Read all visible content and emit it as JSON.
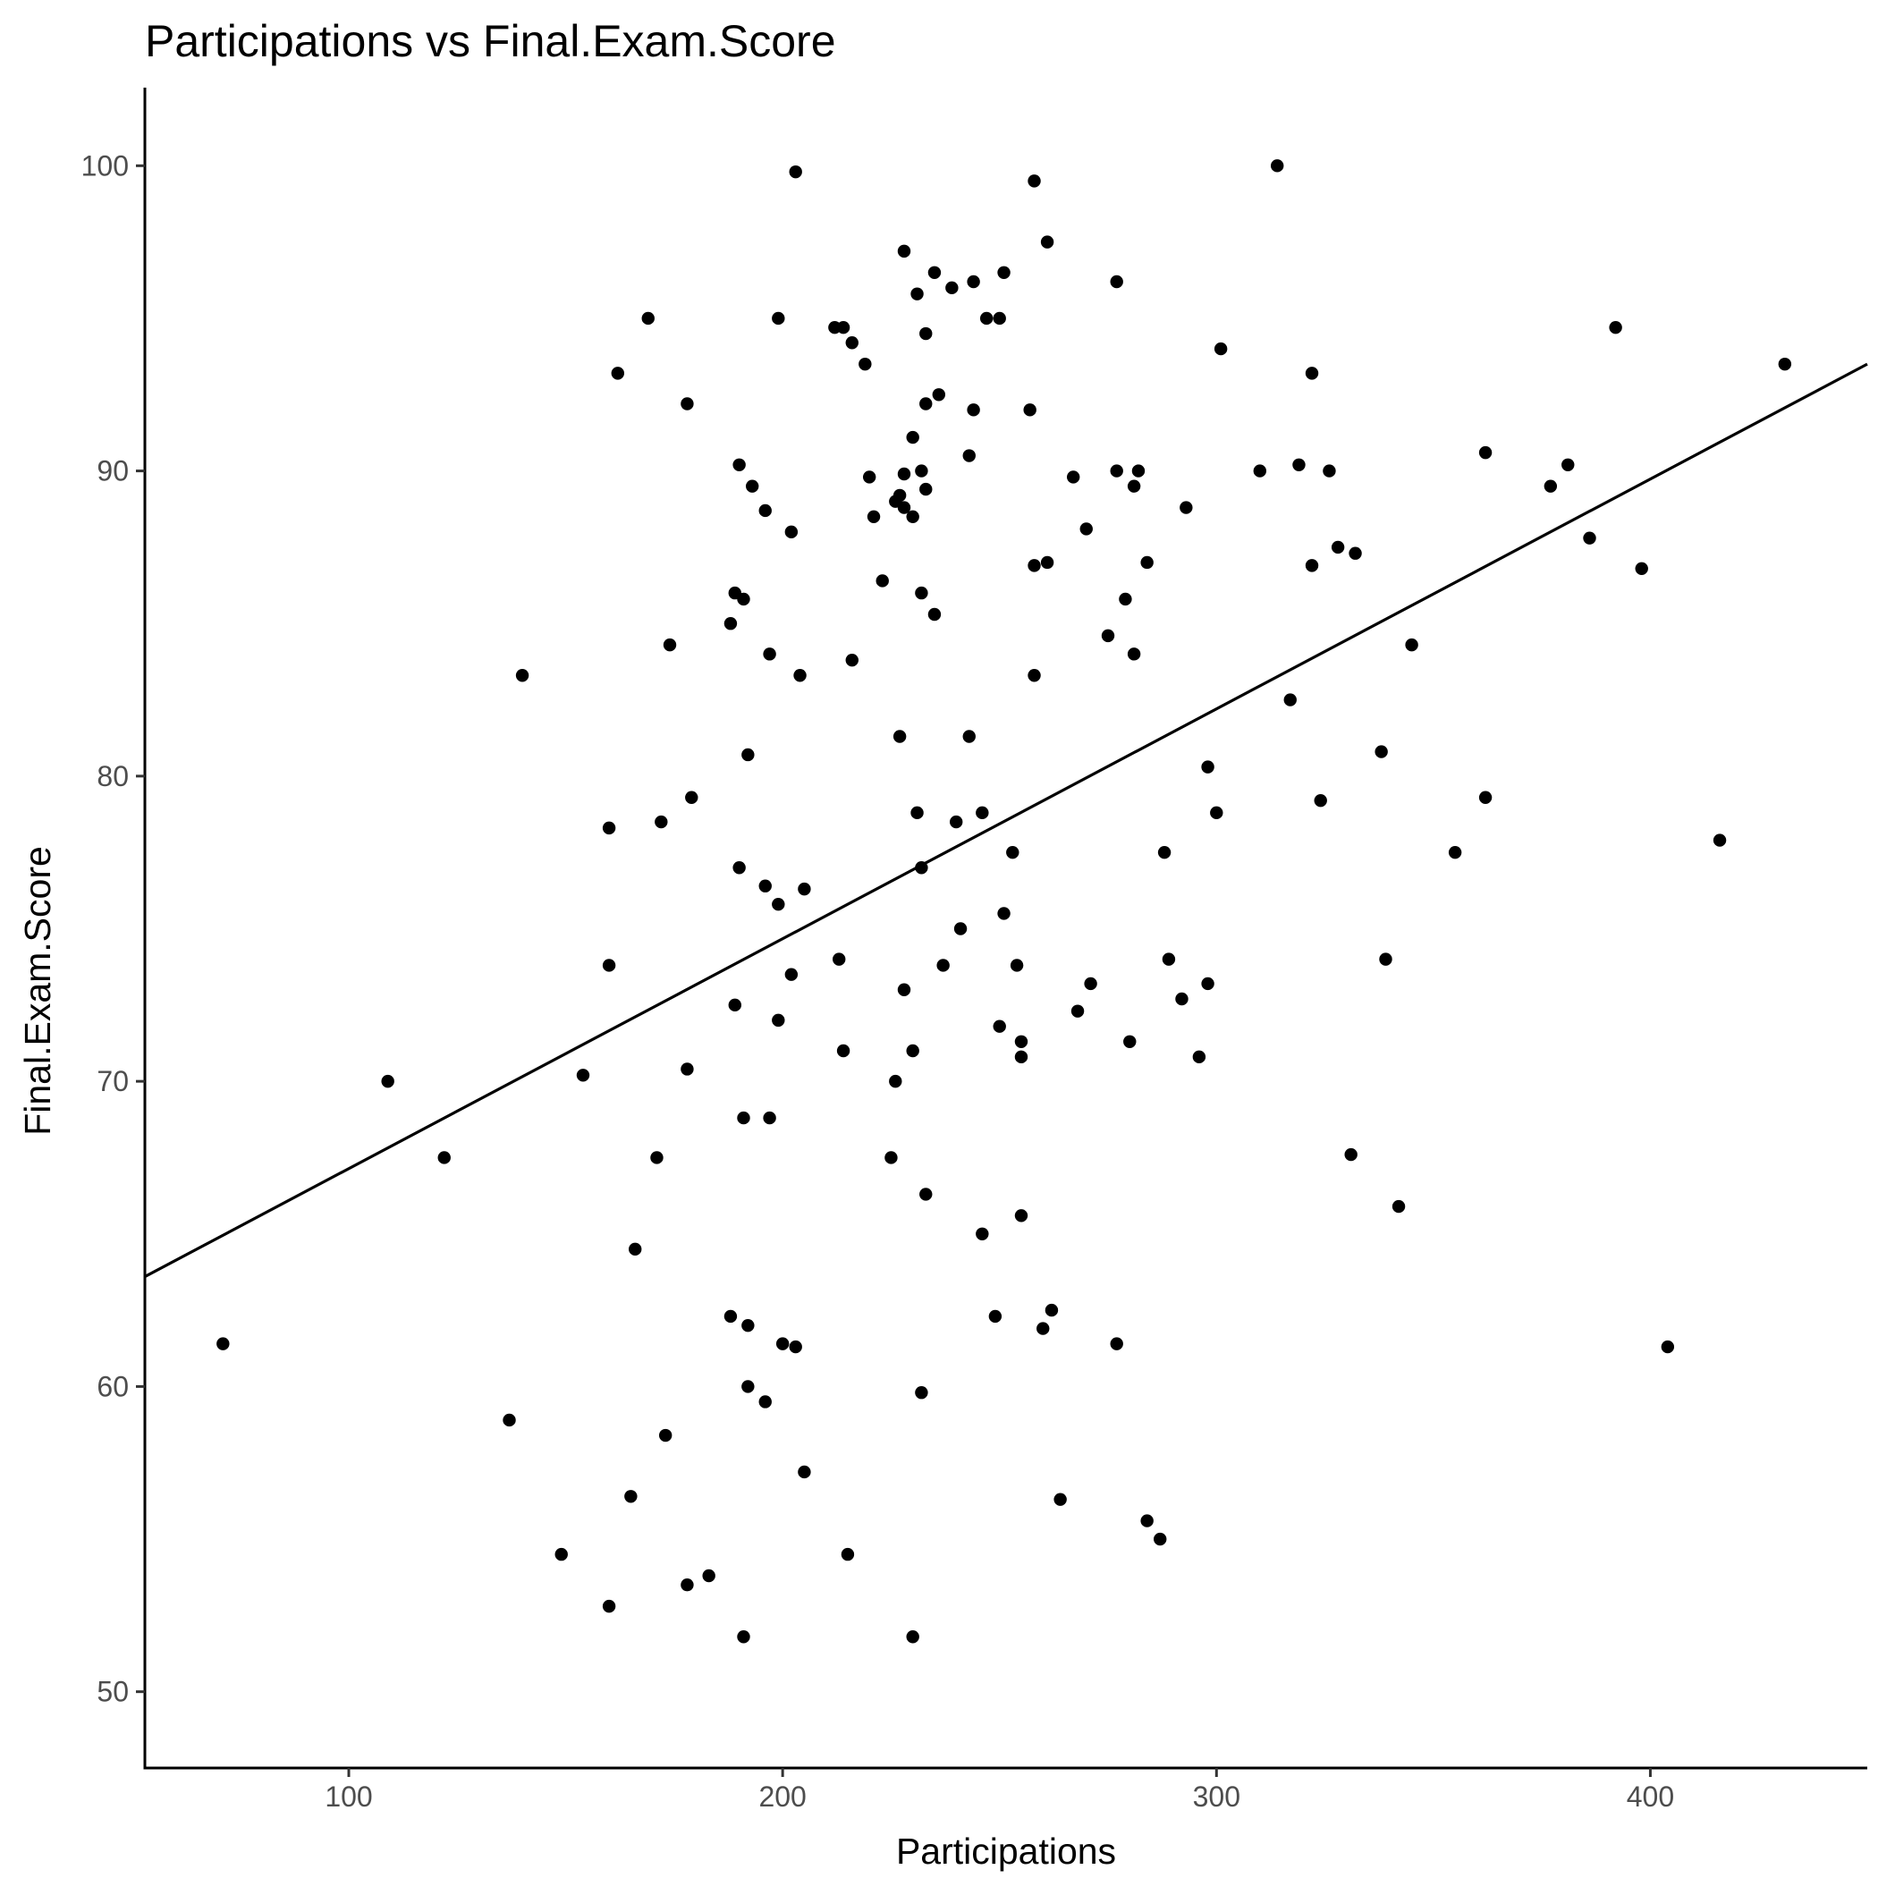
{
  "chart_data": {
    "type": "scatter",
    "title": "Participations vs Final.Exam.Score",
    "xlabel": "Participations",
    "ylabel": "Final.Exam.Score",
    "xlim": [
      53,
      450
    ],
    "ylim": [
      47.5,
      102.5
    ],
    "x_ticks": [
      100,
      200,
      300,
      400
    ],
    "y_ticks": [
      50,
      60,
      70,
      80,
      90,
      100
    ],
    "grid": false,
    "legend": "none",
    "point_color": "#000000",
    "regression_line": {
      "x": [
        53,
        450
      ],
      "y": [
        63.6,
        93.5
      ]
    },
    "points": [
      [
        71,
        61.4
      ],
      [
        109,
        70
      ],
      [
        122,
        67.5
      ],
      [
        137,
        58.9
      ],
      [
        140,
        83.3
      ],
      [
        149,
        54.5
      ],
      [
        154,
        70.2
      ],
      [
        160,
        52.8
      ],
      [
        160,
        73.8
      ],
      [
        160,
        78.3
      ],
      [
        162,
        93.2
      ],
      [
        165,
        56.4
      ],
      [
        166,
        64.5
      ],
      [
        169,
        95
      ],
      [
        171,
        67.5
      ],
      [
        172,
        78.5
      ],
      [
        173,
        58.4
      ],
      [
        174,
        84.3
      ],
      [
        178,
        92.2
      ],
      [
        178,
        70.4
      ],
      [
        178,
        53.5
      ],
      [
        179,
        79.3
      ],
      [
        183,
        53.8
      ],
      [
        188,
        85
      ],
      [
        188,
        62.3
      ],
      [
        189,
        86
      ],
      [
        189,
        72.5
      ],
      [
        190,
        90.2
      ],
      [
        190,
        77
      ],
      [
        191,
        85.8
      ],
      [
        191,
        68.8
      ],
      [
        191,
        51.8
      ],
      [
        192,
        80.7
      ],
      [
        192,
        62
      ],
      [
        192,
        60
      ],
      [
        193,
        89.5
      ],
      [
        196,
        88.7
      ],
      [
        196,
        76.4
      ],
      [
        196,
        59.5
      ],
      [
        197,
        84
      ],
      [
        197,
        68.8
      ],
      [
        199,
        95
      ],
      [
        199,
        75.8
      ],
      [
        199,
        72
      ],
      [
        200,
        61.4
      ],
      [
        202,
        88
      ],
      [
        202,
        73.5
      ],
      [
        203,
        99.8
      ],
      [
        203,
        61.3
      ],
      [
        204,
        83.3
      ],
      [
        205,
        76.3
      ],
      [
        205,
        57.2
      ],
      [
        212,
        94.7
      ],
      [
        213,
        74
      ],
      [
        214,
        94.7
      ],
      [
        214,
        71
      ],
      [
        215,
        54.5
      ],
      [
        216,
        94.2
      ],
      [
        216,
        83.8
      ],
      [
        219,
        93.5
      ],
      [
        220,
        89.8
      ],
      [
        221,
        88.5
      ],
      [
        223,
        86.4
      ],
      [
        225,
        67.5
      ],
      [
        226,
        89
      ],
      [
        226,
        70
      ],
      [
        227,
        89.2
      ],
      [
        227,
        81.3
      ],
      [
        228,
        97.2
      ],
      [
        228,
        89.9
      ],
      [
        228,
        88.8
      ],
      [
        228,
        73
      ],
      [
        230,
        91.1
      ],
      [
        230,
        88.5
      ],
      [
        230,
        71
      ],
      [
        230,
        51.8
      ],
      [
        231,
        95.8
      ],
      [
        231,
        78.8
      ],
      [
        232,
        90
      ],
      [
        232,
        86
      ],
      [
        232,
        77
      ],
      [
        232,
        59.8
      ],
      [
        233,
        94.5
      ],
      [
        233,
        92.2
      ],
      [
        233,
        89.4
      ],
      [
        233,
        66.3
      ],
      [
        235,
        96.5
      ],
      [
        235,
        85.3
      ],
      [
        236,
        92.5
      ],
      [
        237,
        73.8
      ],
      [
        239,
        96
      ],
      [
        240,
        78.5
      ],
      [
        241,
        75
      ],
      [
        243,
        90.5
      ],
      [
        243,
        81.3
      ],
      [
        244,
        96.2
      ],
      [
        244,
        92
      ],
      [
        246,
        78.8
      ],
      [
        246,
        65
      ],
      [
        247,
        95
      ],
      [
        249,
        62.3
      ],
      [
        250,
        95
      ],
      [
        250,
        71.8
      ],
      [
        251,
        96.5
      ],
      [
        251,
        75.5
      ],
      [
        253,
        77.5
      ],
      [
        254,
        73.8
      ],
      [
        255,
        71.3
      ],
      [
        255,
        70.8
      ],
      [
        255,
        65.6
      ],
      [
        257,
        92
      ],
      [
        258,
        99.5
      ],
      [
        258,
        86.9
      ],
      [
        258,
        83.3
      ],
      [
        260,
        61.9
      ],
      [
        261,
        97.5
      ],
      [
        261,
        87
      ],
      [
        262,
        62.5
      ],
      [
        264,
        56.3
      ],
      [
        267,
        89.8
      ],
      [
        268,
        72.3
      ],
      [
        270,
        88.1
      ],
      [
        271,
        73.2
      ],
      [
        275,
        84.6
      ],
      [
        277,
        96.2
      ],
      [
        277,
        90
      ],
      [
        277,
        61.4
      ],
      [
        279,
        85.8
      ],
      [
        280,
        71.3
      ],
      [
        281,
        89.5
      ],
      [
        281,
        84
      ],
      [
        282,
        90
      ],
      [
        284,
        87
      ],
      [
        284,
        55.6
      ],
      [
        287,
        55
      ],
      [
        288,
        77.5
      ],
      [
        289,
        74
      ],
      [
        292,
        72.7
      ],
      [
        293,
        88.8
      ],
      [
        296,
        70.8
      ],
      [
        298,
        80.3
      ],
      [
        298,
        73.2
      ],
      [
        300,
        78.8
      ],
      [
        301,
        94
      ],
      [
        310,
        90
      ],
      [
        314,
        100
      ],
      [
        317,
        82.5
      ],
      [
        319,
        90.2
      ],
      [
        322,
        93.2
      ],
      [
        322,
        86.9
      ],
      [
        324,
        79.2
      ],
      [
        326,
        90
      ],
      [
        328,
        87.5
      ],
      [
        331,
        67.6
      ],
      [
        332,
        87.3
      ],
      [
        338,
        80.8
      ],
      [
        339,
        74
      ],
      [
        342,
        65.9
      ],
      [
        345,
        84.3
      ],
      [
        355,
        77.5
      ],
      [
        362,
        90.6
      ],
      [
        362,
        79.3
      ],
      [
        377,
        89.5
      ],
      [
        381,
        90.2
      ],
      [
        386,
        87.8
      ],
      [
        392,
        94.7
      ],
      [
        398,
        86.8
      ],
      [
        404,
        61.3
      ],
      [
        416,
        77.9
      ],
      [
        431,
        93.5
      ]
    ]
  }
}
